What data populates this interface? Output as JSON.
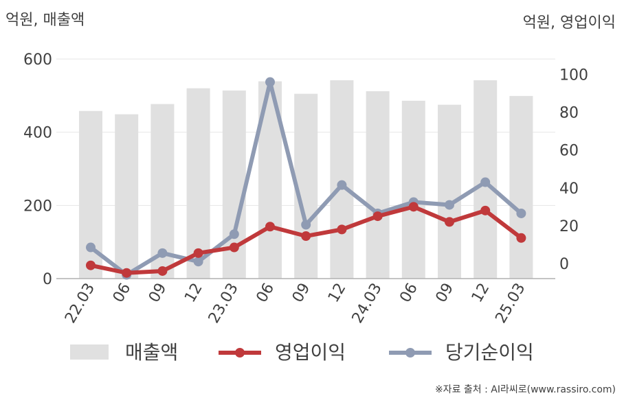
{
  "chart_data": {
    "type": "bar",
    "title": "",
    "categories": [
      "22.03",
      "06",
      "09",
      "12",
      "23.03",
      "06",
      "09",
      "12",
      "24.03",
      "06",
      "09",
      "12",
      "25.03"
    ],
    "y_left_unit": "억원, 매출액",
    "y_right_unit": "억원, 영업이익",
    "y_left_ticks": [
      "0",
      "200",
      "400",
      "600"
    ],
    "y_right_ticks": [
      "0",
      "20",
      "40",
      "60",
      "80",
      "100"
    ],
    "ylim_left": [
      0,
      600
    ],
    "ylim_right": [
      -8,
      102
    ],
    "grid": true,
    "legend_position": "bottom",
    "series": [
      {
        "name": "매출액",
        "kind": "bar",
        "axis": "left",
        "color": "#e0e0e0",
        "values": [
          458,
          449,
          477,
          520,
          514,
          539,
          505,
          542,
          512,
          486,
          475,
          542,
          499
        ]
      },
      {
        "name": "영업이익",
        "kind": "line",
        "axis": "right",
        "color": "#c0393b",
        "values": [
          -1,
          -5,
          -4,
          5.5,
          8.5,
          19.5,
          14.5,
          18,
          25,
          30,
          22,
          28,
          13.5
        ]
      },
      {
        "name": "당기순이익",
        "kind": "line",
        "axis": "right",
        "color": "#8f9bb3",
        "values": [
          8.5,
          -6,
          5.5,
          1,
          15.5,
          96,
          20.5,
          41.5,
          26.5,
          32.5,
          31,
          43,
          26.5
        ]
      }
    ]
  },
  "source_text": "※자료 출처 : AI라씨로(www.rassiro.com)"
}
